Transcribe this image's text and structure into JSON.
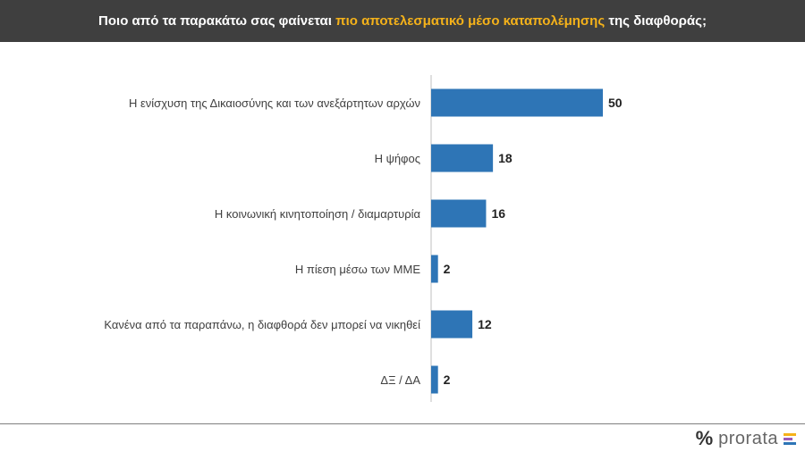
{
  "header": {
    "title_pre": "Ποιο από τα παρακάτω σας φαίνεται",
    "title_highlight": "πιο αποτελεσματικό μέσο καταπολέμησης",
    "title_post": "της διαφθοράς;"
  },
  "chart_data": {
    "type": "bar",
    "orientation": "horizontal",
    "categories": [
      "Η ενίσχυση της Δικαιοσύνης και των ανεξάρτητων αρχών",
      "Η ψήφος",
      "Η κοινωνική κινητοποίηση / διαμαρτυρία",
      "Η πίεση μέσω των ΜΜΕ",
      "Κανένα από τα παραπάνω, η διαφθορά δεν μπορεί να νικηθεί",
      "ΔΞ / ΔΑ"
    ],
    "values": [
      50,
      18,
      16,
      2,
      12,
      2
    ],
    "xlim": [
      0,
      100
    ],
    "grid": false,
    "bar_color": "#2e75b6"
  },
  "footer": {
    "logo_symbol": "%",
    "logo_text": "prorata",
    "logo_colors": [
      "#f5b21a",
      "#9b59b6",
      "#2e75b6"
    ]
  }
}
